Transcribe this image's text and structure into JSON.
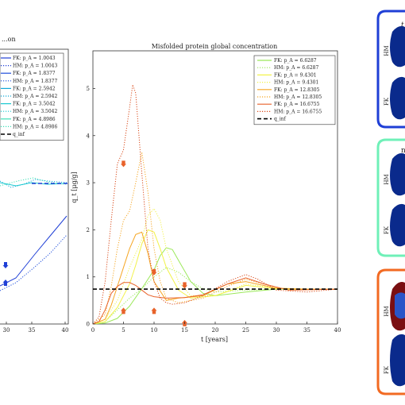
{
  "chart_data": [
    {
      "type": "line",
      "panel": "left",
      "title": "...on",
      "xlim": [
        0,
        40
      ],
      "x_ticks": [
        "30",
        "35",
        "40"
      ],
      "grid": false,
      "legend_position": "top-right",
      "legend": [
        {
          "label": "FK: p_A = 1.0043",
          "color": "#1f3fd6",
          "dash": "solid"
        },
        {
          "label": "HM: p_A = 1.0043",
          "color": "#1f3fd6",
          "dash": "dot"
        },
        {
          "label": "FK: p_A = 1.8377",
          "color": "#1f4fdc",
          "dash": "solid"
        },
        {
          "label": "HM: p_A = 1.8377",
          "color": "#1f4fdc",
          "dash": "dot"
        },
        {
          "label": "FK: p_A = 2.5942",
          "color": "#12a9d8",
          "dash": "solid"
        },
        {
          "label": "HM: p_A = 2.5942",
          "color": "#12a9d8",
          "dash": "dot"
        },
        {
          "label": "FK: p_A = 3.5042",
          "color": "#19c9d0",
          "dash": "solid"
        },
        {
          "label": "HM: p_A = 3.5042",
          "color": "#19c9d0",
          "dash": "dot"
        },
        {
          "label": "FK: p_A = 4.8986",
          "color": "#3fe0b8",
          "dash": "solid"
        },
        {
          "label": "HM: p_A = 4.8986",
          "color": "#3fe0b8",
          "dash": "dot"
        },
        {
          "label": "q_inf",
          "color": "#000000",
          "dash": "dash"
        }
      ]
    },
    {
      "type": "line",
      "panel": "center",
      "title": "Misfolded protein global concentration",
      "xlabel": "t [years]",
      "ylabel": "q_t [μg/g]",
      "xlim": [
        0,
        40
      ],
      "ylim": [
        0,
        5.8
      ],
      "x_ticks": [
        0,
        5,
        10,
        15,
        20,
        25,
        30,
        35,
        40
      ],
      "y_ticks": [
        0,
        1,
        2,
        3,
        4,
        5
      ],
      "grid": false,
      "legend_position": "top-right",
      "series": [
        {
          "name": "FK: p_A = 6.6287",
          "color": "#9be85a",
          "dash": "solid",
          "x": [
            0,
            2,
            4,
            6,
            8,
            10,
            11,
            12,
            13,
            14,
            16,
            18,
            20,
            25,
            30,
            35,
            40
          ],
          "y": [
            0,
            0.02,
            0.12,
            0.38,
            0.75,
            1.15,
            1.45,
            1.62,
            1.58,
            1.35,
            0.9,
            0.65,
            0.6,
            0.68,
            0.74,
            0.74,
            0.74
          ]
        },
        {
          "name": "HM: p_A = 6.6287",
          "color": "#9be85a",
          "dash": "dot",
          "x": [
            0,
            2,
            4,
            6,
            8,
            10,
            12,
            14,
            16,
            18,
            20,
            25,
            30,
            35,
            40
          ],
          "y": [
            0,
            0.05,
            0.3,
            0.55,
            0.75,
            1.0,
            1.2,
            1.1,
            0.9,
            0.75,
            0.68,
            0.72,
            0.74,
            0.74,
            0.74
          ]
        },
        {
          "name": "FK: p_A = 9.4301",
          "color": "#f2f24a",
          "dash": "solid",
          "x": [
            0,
            2,
            4,
            6,
            7,
            8,
            9,
            10,
            11,
            12,
            14,
            16,
            20,
            25,
            30,
            35,
            40
          ],
          "y": [
            0,
            0.05,
            0.35,
            0.85,
            1.25,
            1.7,
            2.0,
            1.95,
            1.6,
            1.2,
            0.72,
            0.55,
            0.6,
            0.82,
            0.75,
            0.74,
            0.74
          ]
        },
        {
          "name": "HM: p_A = 9.4301",
          "color": "#f2f24a",
          "dash": "dot",
          "x": [
            0,
            2,
            4,
            6,
            8,
            9,
            10,
            11,
            12,
            14,
            16,
            20,
            25,
            30,
            35,
            40
          ],
          "y": [
            0,
            0.1,
            0.5,
            1.2,
            1.8,
            2.3,
            2.45,
            2.2,
            1.6,
            0.9,
            0.6,
            0.6,
            0.85,
            0.76,
            0.74,
            0.74
          ]
        },
        {
          "name": "FK: p_A = 12.8305",
          "color": "#f5a623",
          "dash": "solid",
          "x": [
            0,
            2,
            3,
            4,
            5,
            6,
            7,
            8,
            9,
            10,
            12,
            14,
            18,
            22,
            25,
            30,
            35,
            40
          ],
          "y": [
            0,
            0.1,
            0.4,
            0.8,
            1.2,
            1.6,
            1.9,
            1.95,
            1.5,
            0.9,
            0.5,
            0.55,
            0.6,
            0.85,
            0.9,
            0.76,
            0.74,
            0.74
          ]
        },
        {
          "name": "HM: p_A = 12.8305",
          "color": "#f5a623",
          "dash": "dot",
          "x": [
            0,
            2,
            3,
            4,
            5,
            6,
            7,
            8,
            9,
            10,
            11,
            12,
            14,
            18,
            22,
            25,
            28,
            32,
            40
          ],
          "y": [
            0,
            0.2,
            0.8,
            1.6,
            2.2,
            2.4,
            3.0,
            3.65,
            2.8,
            1.6,
            0.9,
            0.55,
            0.45,
            0.55,
            0.8,
            0.95,
            0.85,
            0.72,
            0.74
          ]
        },
        {
          "name": "FK: p_A = 16.6755",
          "color": "#e8622a",
          "dash": "solid",
          "x": [
            0,
            1,
            2,
            3,
            4,
            5,
            6,
            7,
            8,
            9,
            10,
            12,
            15,
            18,
            22,
            25,
            28,
            32,
            40
          ],
          "y": [
            0,
            0.05,
            0.3,
            0.65,
            0.8,
            0.88,
            0.88,
            0.82,
            0.72,
            0.62,
            0.58,
            0.55,
            0.56,
            0.62,
            0.85,
            0.98,
            0.85,
            0.72,
            0.74
          ]
        },
        {
          "name": "HM: p_A = 16.6755",
          "color": "#d94a1a",
          "dash": "dot",
          "x": [
            0,
            1,
            2,
            3,
            4,
            5,
            6,
            6.5,
            7,
            8,
            9,
            10,
            11,
            12,
            13,
            15,
            18,
            22,
            25,
            27,
            30,
            35,
            40
          ],
          "y": [
            0,
            0.15,
            0.9,
            2.2,
            3.4,
            3.7,
            4.6,
            5.08,
            4.9,
            3.2,
            1.6,
            0.9,
            0.55,
            0.45,
            0.42,
            0.45,
            0.6,
            0.9,
            1.05,
            0.95,
            0.72,
            0.68,
            0.74
          ]
        },
        {
          "name": "q_inf",
          "color": "#000000",
          "dash": "dash",
          "x": [
            0,
            40
          ],
          "y": [
            0.74,
            0.74
          ]
        }
      ]
    },
    {
      "type": "line",
      "panel": "right-tabs",
      "labels": [
        "HM",
        "FK",
        "HM",
        "FK",
        "HM",
        "FK"
      ],
      "header_letters": [
        "t",
        "n"
      ]
    }
  ]
}
